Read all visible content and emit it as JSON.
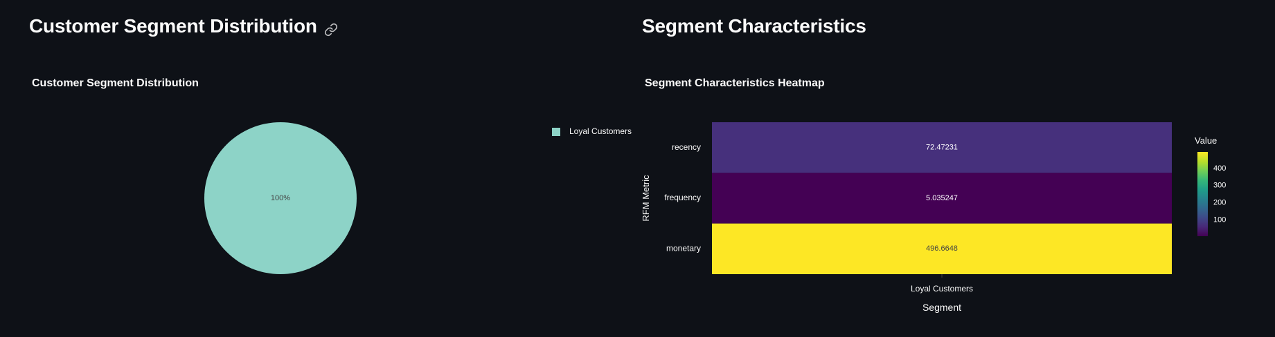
{
  "left": {
    "section_title": "Customer Segment Distribution",
    "link_icon": "link-icon",
    "chart_title": "Customer Segment Distribution"
  },
  "right": {
    "section_title": "Segment Characteristics",
    "chart_title": "Segment Characteristics Heatmap"
  },
  "colors": {
    "background": "#0e1117",
    "pie_slice": "#8dd3c7",
    "text": "#fafafa"
  },
  "chart_data": [
    {
      "type": "pie",
      "title": "Customer Segment Distribution",
      "labels": [
        "Loyal Customers"
      ],
      "values": [
        100
      ],
      "slice_labels": [
        "100%"
      ],
      "legend": [
        "Loyal Customers"
      ],
      "legend_position": "top-right"
    },
    {
      "type": "heatmap",
      "title": "Segment Characteristics Heatmap",
      "xlabel": "Segment",
      "ylabel": "RFM Metric",
      "x": [
        "Loyal Customers"
      ],
      "y": [
        "recency",
        "frequency",
        "monetary"
      ],
      "z": [
        [
          72.47231
        ],
        [
          5.035247
        ],
        [
          496.6648
        ]
      ],
      "cell_labels": [
        "72.47231",
        "5.035247",
        "496.6648"
      ],
      "colorscale": "Viridis",
      "zmin": 5.035247,
      "zmax": 496.6648,
      "colorbar": {
        "title": "Value",
        "tickvals": [
          100,
          200,
          300,
          400
        ],
        "ticktext": [
          "100",
          "200",
          "300",
          "400"
        ]
      }
    }
  ]
}
